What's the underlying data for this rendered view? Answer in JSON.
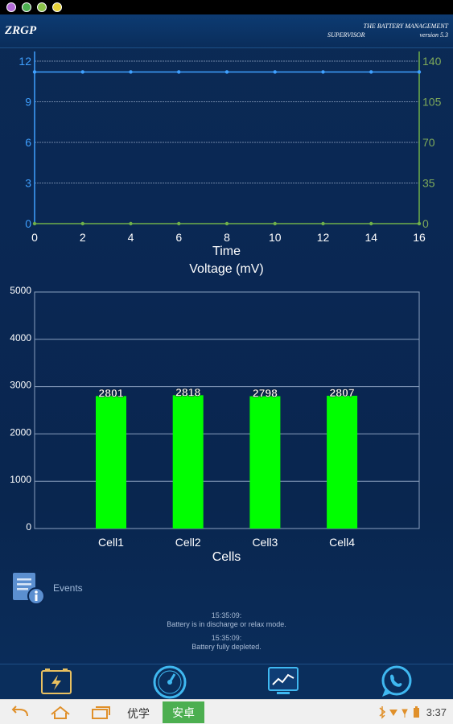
{
  "header": {
    "logo": "ZRGP",
    "subtitle_line1": "THE BATTERY MANAGEMENT",
    "subtitle_line2": "SUPERVISOR",
    "version": "version 5.3"
  },
  "chart_data": [
    {
      "type": "line",
      "xlabel": "Time",
      "x_ticks": [
        "0",
        "2",
        "4",
        "6",
        "8",
        "10",
        "12",
        "14",
        "16"
      ],
      "y_left_ticks": [
        "0",
        "3",
        "6",
        "9",
        "12"
      ],
      "y_right_ticks": [
        "0",
        "35",
        "70",
        "105",
        "140"
      ],
      "xlim": [
        0,
        16
      ],
      "ylim_left": [
        0,
        12
      ],
      "ylim_right": [
        0,
        140
      ],
      "grid": true,
      "series": [
        {
          "axis": "left",
          "color": "#3fa0ff",
          "x": [
            0,
            2,
            4,
            6,
            8,
            10,
            12,
            14,
            16
          ],
          "values": [
            11.2,
            11.2,
            11.2,
            11.2,
            11.2,
            11.2,
            11.2,
            11.2,
            11.2
          ]
        },
        {
          "axis": "right",
          "color": "#6fb04a",
          "x": [
            0,
            2,
            4,
            6,
            8,
            10,
            12,
            14,
            16
          ],
          "values": [
            0,
            0,
            0,
            0,
            0,
            0,
            0,
            0,
            0
          ]
        }
      ]
    },
    {
      "type": "bar",
      "title": "Voltage (mV)",
      "xlabel": "Cells",
      "categories": [
        "Cell1",
        "Cell2",
        "Cell3",
        "Cell4"
      ],
      "values": [
        2801,
        2818,
        2798,
        2807
      ],
      "value_labels": [
        "2801",
        "2818",
        "2798",
        "2807"
      ],
      "y_ticks": [
        "0",
        "1000",
        "2000",
        "3000",
        "4000",
        "5000"
      ],
      "ylim": [
        0,
        5000
      ],
      "bar_color": "#00ff00",
      "grid": true
    }
  ],
  "events": {
    "label": "Events",
    "icon": "document-info-icon"
  },
  "log": [
    {
      "time": "15:35:09:",
      "message": "Battery is in discharge or relax mode."
    },
    {
      "time": "15:35:09:",
      "message": "Battery fully depleted."
    }
  ],
  "bottom_nav": [
    {
      "icon": "battery-charge-icon"
    },
    {
      "icon": "gauge-icon"
    },
    {
      "icon": "chart-icon"
    },
    {
      "icon": "whatsapp-icon"
    }
  ],
  "system_bar": {
    "ime_left": "优学",
    "ime_active": "安卓",
    "time": "3:37"
  },
  "colors": {
    "background": "#0a2753",
    "bar": "#00ff00",
    "line_left": "#3fa0ff",
    "line_right": "#6fb04a"
  }
}
